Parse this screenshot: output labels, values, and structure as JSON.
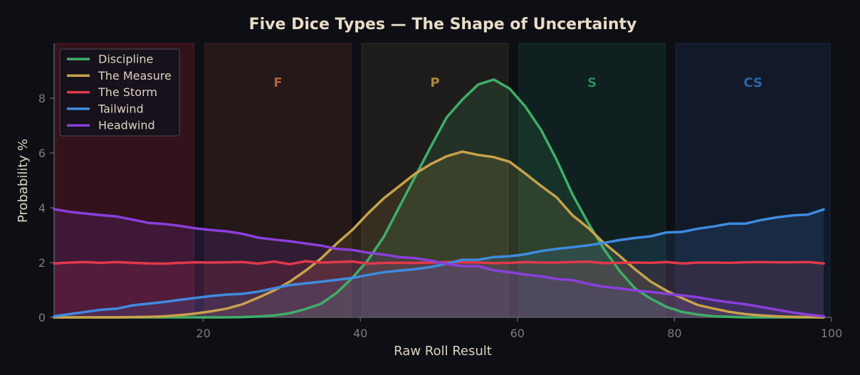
{
  "chart_data": {
    "type": "line",
    "title": "Five Dice Types — The Shape of Uncertainty",
    "xlabel": "Raw Roll Result",
    "ylabel": "Probability %",
    "xlim": [
      1,
      100
    ],
    "ylim": [
      0,
      10
    ],
    "xticks": [
      20,
      40,
      60,
      80,
      100
    ],
    "yticks": [
      0,
      2,
      4,
      6,
      8
    ],
    "grid": false,
    "legend": "top-left",
    "zones": [
      {
        "label": "CF",
        "range": [
          1,
          19
        ],
        "color": "#8b1a2e",
        "label_color": "#7a2430"
      },
      {
        "label": "F",
        "range": [
          20,
          39
        ],
        "color": "#5a2e26",
        "label_color": "#b0603a"
      },
      {
        "label": "P",
        "range": [
          40,
          59
        ],
        "color": "#4a4030",
        "label_color": "#a8873e"
      },
      {
        "label": "S",
        "range": [
          60,
          79
        ],
        "color": "#17453a",
        "label_color": "#2e8a58"
      },
      {
        "label": "CS",
        "range": [
          80,
          100
        ],
        "color": "#1d3560",
        "label_color": "#2f64a8"
      }
    ],
    "series": [
      {
        "name": "Discipline",
        "color": "#3fae68",
        "x": [
          1,
          3,
          5,
          7,
          9,
          11,
          13,
          15,
          17,
          19,
          21,
          23,
          25,
          27,
          29,
          31,
          33,
          35,
          37,
          39,
          41,
          43,
          45,
          47,
          49,
          51,
          53,
          55,
          57,
          59,
          61,
          63,
          65,
          67,
          69,
          71,
          73,
          75,
          77,
          79,
          81,
          83,
          85,
          87,
          89,
          91,
          93,
          95,
          97,
          99
        ],
        "y": [
          0,
          0,
          0,
          0,
          0,
          0,
          0,
          0,
          0,
          0,
          0,
          0,
          0.01,
          0.03,
          0.07,
          0.15,
          0.3,
          0.5,
          0.9,
          1.45,
          2.1,
          2.95,
          4.05,
          5.15,
          6.25,
          7.3,
          7.95,
          8.5,
          8.68,
          8.35,
          7.7,
          6.85,
          5.75,
          4.5,
          3.45,
          2.5,
          1.7,
          1.05,
          0.68,
          0.38,
          0.2,
          0.1,
          0.04,
          0.02,
          0,
          0,
          0,
          0,
          0,
          0
        ]
      },
      {
        "name": "The Measure",
        "color": "#c8a24a",
        "x": [
          1,
          3,
          5,
          7,
          9,
          11,
          13,
          15,
          17,
          19,
          21,
          23,
          25,
          27,
          29,
          31,
          33,
          35,
          37,
          39,
          41,
          43,
          45,
          47,
          49,
          51,
          53,
          55,
          57,
          59,
          61,
          63,
          65,
          67,
          69,
          71,
          73,
          75,
          77,
          79,
          81,
          83,
          85,
          87,
          89,
          91,
          93,
          95,
          97,
          99
        ],
        "y": [
          0,
          0,
          0,
          0,
          0,
          0.01,
          0.02,
          0.04,
          0.08,
          0.14,
          0.22,
          0.32,
          0.48,
          0.72,
          0.98,
          1.3,
          1.7,
          2.15,
          2.7,
          3.2,
          3.8,
          4.35,
          4.8,
          5.25,
          5.6,
          5.88,
          6.05,
          5.93,
          5.85,
          5.68,
          5.25,
          4.8,
          4.38,
          3.73,
          3.27,
          2.72,
          2.25,
          1.75,
          1.3,
          0.97,
          0.7,
          0.45,
          0.32,
          0.2,
          0.12,
          0.07,
          0.04,
          0.02,
          0.01,
          0
        ]
      },
      {
        "name": "The Storm",
        "color": "#e0394a",
        "x": [
          1,
          3,
          5,
          7,
          9,
          11,
          13,
          15,
          17,
          19,
          21,
          23,
          25,
          27,
          29,
          31,
          33,
          35,
          37,
          39,
          41,
          43,
          45,
          47,
          49,
          51,
          53,
          55,
          57,
          59,
          61,
          63,
          65,
          67,
          69,
          71,
          73,
          75,
          77,
          79,
          81,
          83,
          85,
          87,
          89,
          91,
          93,
          95,
          97,
          99
        ],
        "y": [
          1.97,
          2.0,
          2.02,
          1.99,
          2.02,
          1.99,
          1.97,
          1.96,
          1.99,
          2.01,
          2.0,
          2.01,
          2.02,
          1.96,
          2.04,
          1.94,
          2.05,
          2.0,
          2.02,
          2.04,
          1.96,
          1.99,
          1.99,
          1.99,
          2.0,
          2.02,
          2.01,
          2.0,
          1.98,
          1.99,
          2.02,
          2.0,
          2.0,
          2.02,
          2.03,
          1.98,
          1.99,
          2.0,
          1.99,
          2.02,
          1.97,
          2.0,
          2.0,
          1.99,
          2.01,
          2.02,
          2.01,
          2.01,
          2.02,
          1.97
        ]
      },
      {
        "name": "Tailwind",
        "color": "#3f8be0",
        "x": [
          1,
          3,
          5,
          7,
          9,
          11,
          13,
          15,
          17,
          19,
          21,
          23,
          25,
          27,
          29,
          31,
          33,
          35,
          37,
          39,
          41,
          43,
          45,
          47,
          49,
          51,
          53,
          55,
          57,
          59,
          61,
          63,
          65,
          67,
          69,
          71,
          73,
          75,
          77,
          79,
          81,
          83,
          85,
          87,
          89,
          91,
          93,
          95,
          97,
          99
        ],
        "y": [
          0.04,
          0.12,
          0.2,
          0.28,
          0.32,
          0.44,
          0.5,
          0.56,
          0.64,
          0.71,
          0.78,
          0.83,
          0.86,
          0.94,
          1.06,
          1.18,
          1.24,
          1.3,
          1.37,
          1.44,
          1.55,
          1.65,
          1.71,
          1.76,
          1.84,
          1.96,
          2.1,
          2.1,
          2.2,
          2.23,
          2.3,
          2.42,
          2.5,
          2.56,
          2.63,
          2.72,
          2.82,
          2.9,
          2.96,
          3.1,
          3.12,
          3.24,
          3.32,
          3.42,
          3.42,
          3.55,
          3.65,
          3.72,
          3.75,
          3.94
        ]
      },
      {
        "name": "Headwind",
        "color": "#8a3fdc",
        "x": [
          1,
          3,
          5,
          7,
          9,
          11,
          13,
          15,
          17,
          19,
          21,
          23,
          25,
          27,
          29,
          31,
          33,
          35,
          37,
          39,
          41,
          43,
          45,
          47,
          49,
          51,
          53,
          55,
          57,
          59,
          61,
          63,
          65,
          67,
          69,
          71,
          73,
          75,
          77,
          79,
          81,
          83,
          85,
          87,
          89,
          91,
          93,
          95,
          97,
          99
        ],
        "y": [
          3.95,
          3.85,
          3.79,
          3.73,
          3.68,
          3.57,
          3.45,
          3.41,
          3.34,
          3.25,
          3.19,
          3.14,
          3.05,
          2.91,
          2.84,
          2.78,
          2.7,
          2.62,
          2.5,
          2.46,
          2.36,
          2.29,
          2.2,
          2.16,
          2.07,
          1.95,
          1.87,
          1.87,
          1.72,
          1.65,
          1.56,
          1.5,
          1.4,
          1.36,
          1.22,
          1.12,
          1.06,
          0.98,
          0.93,
          0.86,
          0.8,
          0.73,
          0.63,
          0.55,
          0.48,
          0.38,
          0.28,
          0.18,
          0.1,
          0.04
        ]
      }
    ]
  }
}
